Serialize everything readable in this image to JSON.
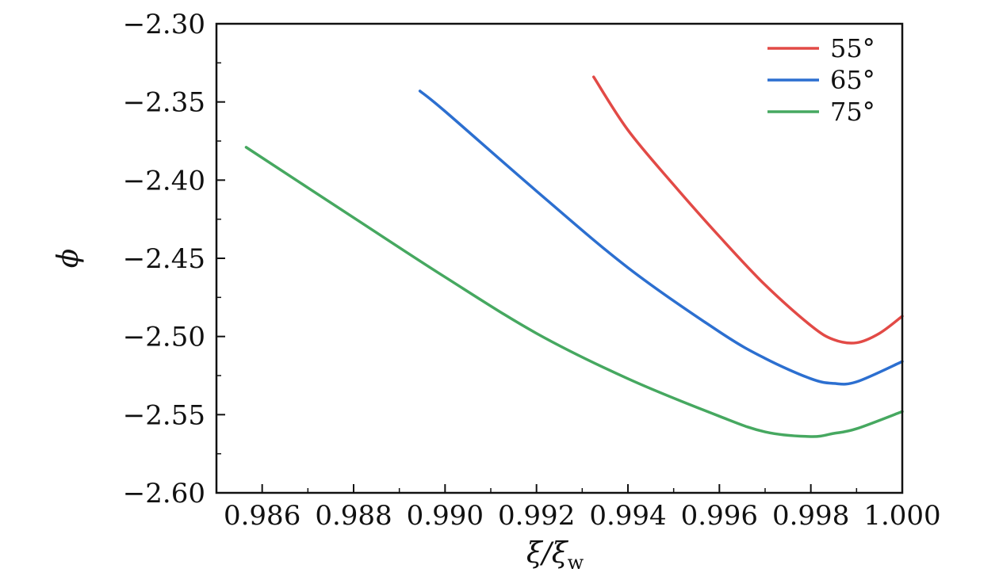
{
  "chart_data": {
    "type": "line",
    "xlabel": "ξ/ξ",
    "xlabel_subscript": "w",
    "ylabel": "ϕ",
    "xlim": [
      0.985,
      1.0
    ],
    "ylim": [
      -2.6,
      -2.3
    ],
    "x_ticks": [
      0.986,
      0.988,
      0.99,
      0.992,
      0.994,
      0.996,
      0.998,
      1.0
    ],
    "x_tick_labels": [
      "0.986",
      "0.988",
      "0.990",
      "0.992",
      "0.994",
      "0.996",
      "0.998",
      "1.000"
    ],
    "y_ticks": [
      -2.3,
      -2.35,
      -2.4,
      -2.45,
      -2.5,
      -2.55,
      -2.6
    ],
    "y_tick_labels": [
      "−2.30",
      "−2.35",
      "−2.40",
      "−2.45",
      "−2.50",
      "−2.55",
      "−2.60"
    ],
    "grid": false,
    "legend_position": "top-right",
    "series": [
      {
        "name": "55°",
        "color": "#e24a46",
        "x": [
          0.99325,
          0.994,
          0.995,
          0.996,
          0.997,
          0.998,
          0.9985,
          0.999,
          0.9995,
          1.0
        ],
        "y": [
          -2.334,
          -2.368,
          -2.403,
          -2.436,
          -2.467,
          -2.493,
          -2.502,
          -2.504,
          -2.498,
          -2.487
        ]
      },
      {
        "name": "65°",
        "color": "#2c6fd0",
        "x": [
          0.98945,
          0.99,
          0.992,
          0.994,
          0.996,
          0.997,
          0.998,
          0.9985,
          0.999,
          1.0
        ],
        "y": [
          -2.343,
          -2.356,
          -2.407,
          -2.456,
          -2.497,
          -2.514,
          -2.527,
          -2.53,
          -2.529,
          -2.516
        ]
      },
      {
        "name": "75°",
        "color": "#46a860",
        "x": [
          0.98565,
          0.988,
          0.99,
          0.992,
          0.994,
          0.996,
          0.997,
          0.998,
          0.9985,
          0.999,
          1.0
        ],
        "y": [
          -2.379,
          -2.424,
          -2.462,
          -2.498,
          -2.527,
          -2.551,
          -2.561,
          -2.564,
          -2.562,
          -2.559,
          -2.548
        ]
      }
    ]
  }
}
